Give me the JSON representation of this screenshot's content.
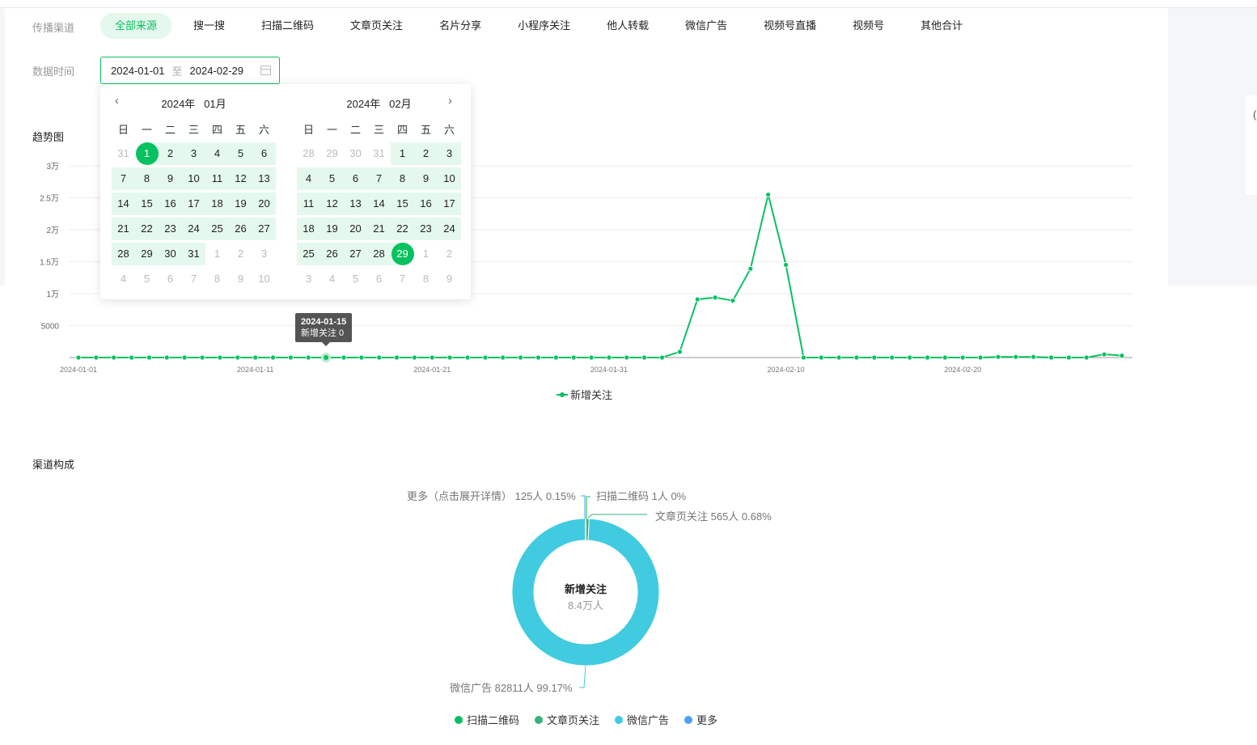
{
  "filters": {
    "channel_label": "传播渠道",
    "tabs": [
      "全部来源",
      "搜一搜",
      "扫描二维码",
      "文章页关注",
      "名片分享",
      "小程序关注",
      "他人转载",
      "微信广告",
      "视频号直播",
      "视频号",
      "其他合计"
    ],
    "active_tab": "全部来源",
    "date_label": "数据时间",
    "date_start": "2024-01-01",
    "date_sep": "至",
    "date_end": "2024-02-29"
  },
  "calendar": {
    "weekdays": [
      "日",
      "一",
      "二",
      "三",
      "四",
      "五",
      "六"
    ],
    "prev_icon": "chevron-left-icon",
    "next_icon": "chevron-right-icon",
    "months": [
      {
        "year": "2024年",
        "month": "01月",
        "leading": [
          31
        ],
        "days_in_month": 31,
        "trailing": [
          1,
          2,
          3,
          4,
          5,
          6,
          7,
          8,
          9,
          10
        ],
        "selected": 1
      },
      {
        "year": "2024年",
        "month": "02月",
        "leading": [
          28,
          29,
          30,
          31
        ],
        "days_in_month": 29,
        "trailing": [
          1,
          2,
          3,
          4,
          5,
          6,
          7,
          8,
          9
        ],
        "selected": 29
      }
    ]
  },
  "trend": {
    "title": "趋势图",
    "tooltip": {
      "date": "2024-01-15",
      "text": "新增关注 0"
    },
    "chart_data": {
      "type": "line",
      "x_start": "2024-01-01",
      "x_end": "2024-02-29",
      "x_tick_labels": [
        "2024-01-01",
        "2024-01-11",
        "2024-01-21",
        "2024-01-31",
        "2024-02-10",
        "2024-02-20"
      ],
      "y_tick_labels": [
        "5000",
        "1万",
        "1.5万",
        "2万",
        "2.5万",
        "3万"
      ],
      "ylim": [
        0,
        30000
      ],
      "grid": true,
      "legend": "bottom",
      "series": [
        {
          "name": "新增关注",
          "color": "#07c160",
          "values": [
            0,
            0,
            0,
            0,
            0,
            0,
            0,
            0,
            0,
            0,
            0,
            0,
            0,
            0,
            0,
            0,
            0,
            0,
            0,
            0,
            0,
            0,
            0,
            0,
            0,
            0,
            0,
            0,
            0,
            0,
            0,
            0,
            0,
            0,
            900,
            9100,
            9400,
            8900,
            13900,
            25500,
            14500,
            0,
            0,
            0,
            0,
            0,
            0,
            0,
            0,
            0,
            0,
            0,
            100,
            100,
            100,
            0,
            0,
            0,
            500,
            300
          ]
        }
      ]
    }
  },
  "composition": {
    "title": "渠道构成",
    "center_title": "新增关注",
    "center_value": "8.4万人",
    "chart_data": {
      "type": "pie",
      "donut": true,
      "slices": [
        {
          "name": "扫描二维码",
          "count": "1人",
          "percent": 0,
          "label": "扫描二维码 1人 0%",
          "color": "#07c160"
        },
        {
          "name": "文章页关注",
          "count": "565人",
          "percent": 0.68,
          "label": "文章页关注 565人 0.68%",
          "color": "#36b37e"
        },
        {
          "name": "微信广告",
          "count": "82811人",
          "percent": 99.17,
          "label": "微信广告 82811人 99.17%",
          "color": "#40cbe0"
        },
        {
          "name": "更多",
          "count": "125人",
          "percent": 0.15,
          "label": "更多（点击展开详情） 125人 0.15%",
          "color": "#4f9ff0"
        }
      ],
      "legend": "bottom"
    }
  }
}
